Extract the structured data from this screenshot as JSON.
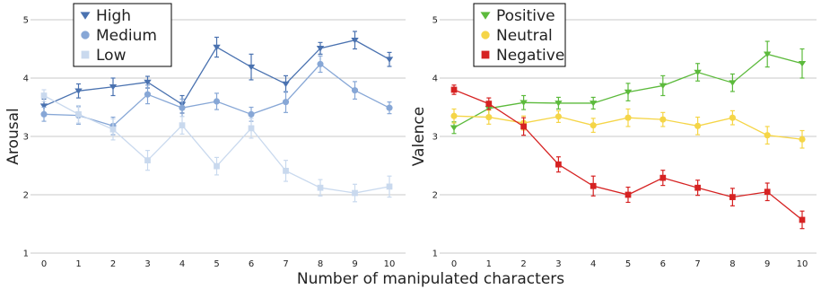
{
  "chart_data": [
    {
      "type": "line",
      "ylabel": "Arousal",
      "x": [
        0,
        1,
        2,
        3,
        4,
        5,
        6,
        7,
        8,
        9,
        10
      ],
      "ylim": [
        1,
        5
      ],
      "yticks": [
        1,
        2,
        3,
        4,
        5
      ],
      "grid": true,
      "legend": "top-left",
      "series": [
        {
          "name": "High",
          "marker": "triangle-down",
          "color": "#4a72b0",
          "values": [
            3.52,
            3.78,
            3.85,
            3.93,
            3.55,
            4.53,
            4.19,
            3.9,
            4.51,
            4.65,
            4.32
          ],
          "errors": [
            0.12,
            0.12,
            0.15,
            0.1,
            0.15,
            0.17,
            0.22,
            0.14,
            0.1,
            0.15,
            0.12
          ]
        },
        {
          "name": "Medium",
          "marker": "circle",
          "color": "#87a7d6",
          "values": [
            3.38,
            3.36,
            3.18,
            3.72,
            3.49,
            3.6,
            3.38,
            3.59,
            4.24,
            3.79,
            3.49
          ],
          "errors": [
            0.12,
            0.15,
            0.15,
            0.16,
            0.15,
            0.14,
            0.12,
            0.18,
            0.14,
            0.15,
            0.1
          ]
        },
        {
          "name": "Low",
          "marker": "square",
          "color": "#c9d9ee",
          "values": [
            3.7,
            3.38,
            3.12,
            2.59,
            3.19,
            2.49,
            3.14,
            2.41,
            2.12,
            2.03,
            2.14
          ],
          "errors": [
            0.1,
            0.15,
            0.18,
            0.17,
            0.15,
            0.15,
            0.17,
            0.18,
            0.14,
            0.15,
            0.18
          ]
        }
      ]
    },
    {
      "type": "line",
      "ylabel": "Valence",
      "x": [
        0,
        1,
        2,
        3,
        4,
        5,
        6,
        7,
        8,
        9,
        10
      ],
      "ylim": [
        1,
        5
      ],
      "yticks": [
        1,
        2,
        3,
        4,
        5
      ],
      "grid": true,
      "legend": "top-left",
      "series": [
        {
          "name": "Positive",
          "marker": "triangle-down",
          "color": "#5cba3c",
          "values": [
            3.15,
            3.48,
            3.58,
            3.57,
            3.57,
            3.76,
            3.87,
            4.1,
            3.92,
            4.41,
            4.25
          ],
          "errors": [
            0.1,
            0.12,
            0.12,
            0.1,
            0.1,
            0.15,
            0.17,
            0.15,
            0.15,
            0.22,
            0.25
          ]
        },
        {
          "name": "Neutral",
          "marker": "circle",
          "color": "#f5d547",
          "values": [
            3.35,
            3.33,
            3.23,
            3.34,
            3.19,
            3.32,
            3.29,
            3.18,
            3.32,
            3.02,
            2.95
          ],
          "errors": [
            0.12,
            0.12,
            0.12,
            0.1,
            0.12,
            0.15,
            0.12,
            0.15,
            0.12,
            0.15,
            0.15
          ]
        },
        {
          "name": "Negative",
          "marker": "square",
          "color": "#d62222",
          "values": [
            3.8,
            3.56,
            3.17,
            2.52,
            2.15,
            2.0,
            2.29,
            2.12,
            1.96,
            2.05,
            1.57
          ],
          "errors": [
            0.08,
            0.1,
            0.15,
            0.13,
            0.17,
            0.13,
            0.13,
            0.13,
            0.15,
            0.15,
            0.15
          ]
        }
      ]
    }
  ],
  "shared": {
    "xlabel": "Number of manipulated characters",
    "tick_color": "#222222",
    "grid_color": "#c8c8c8"
  }
}
